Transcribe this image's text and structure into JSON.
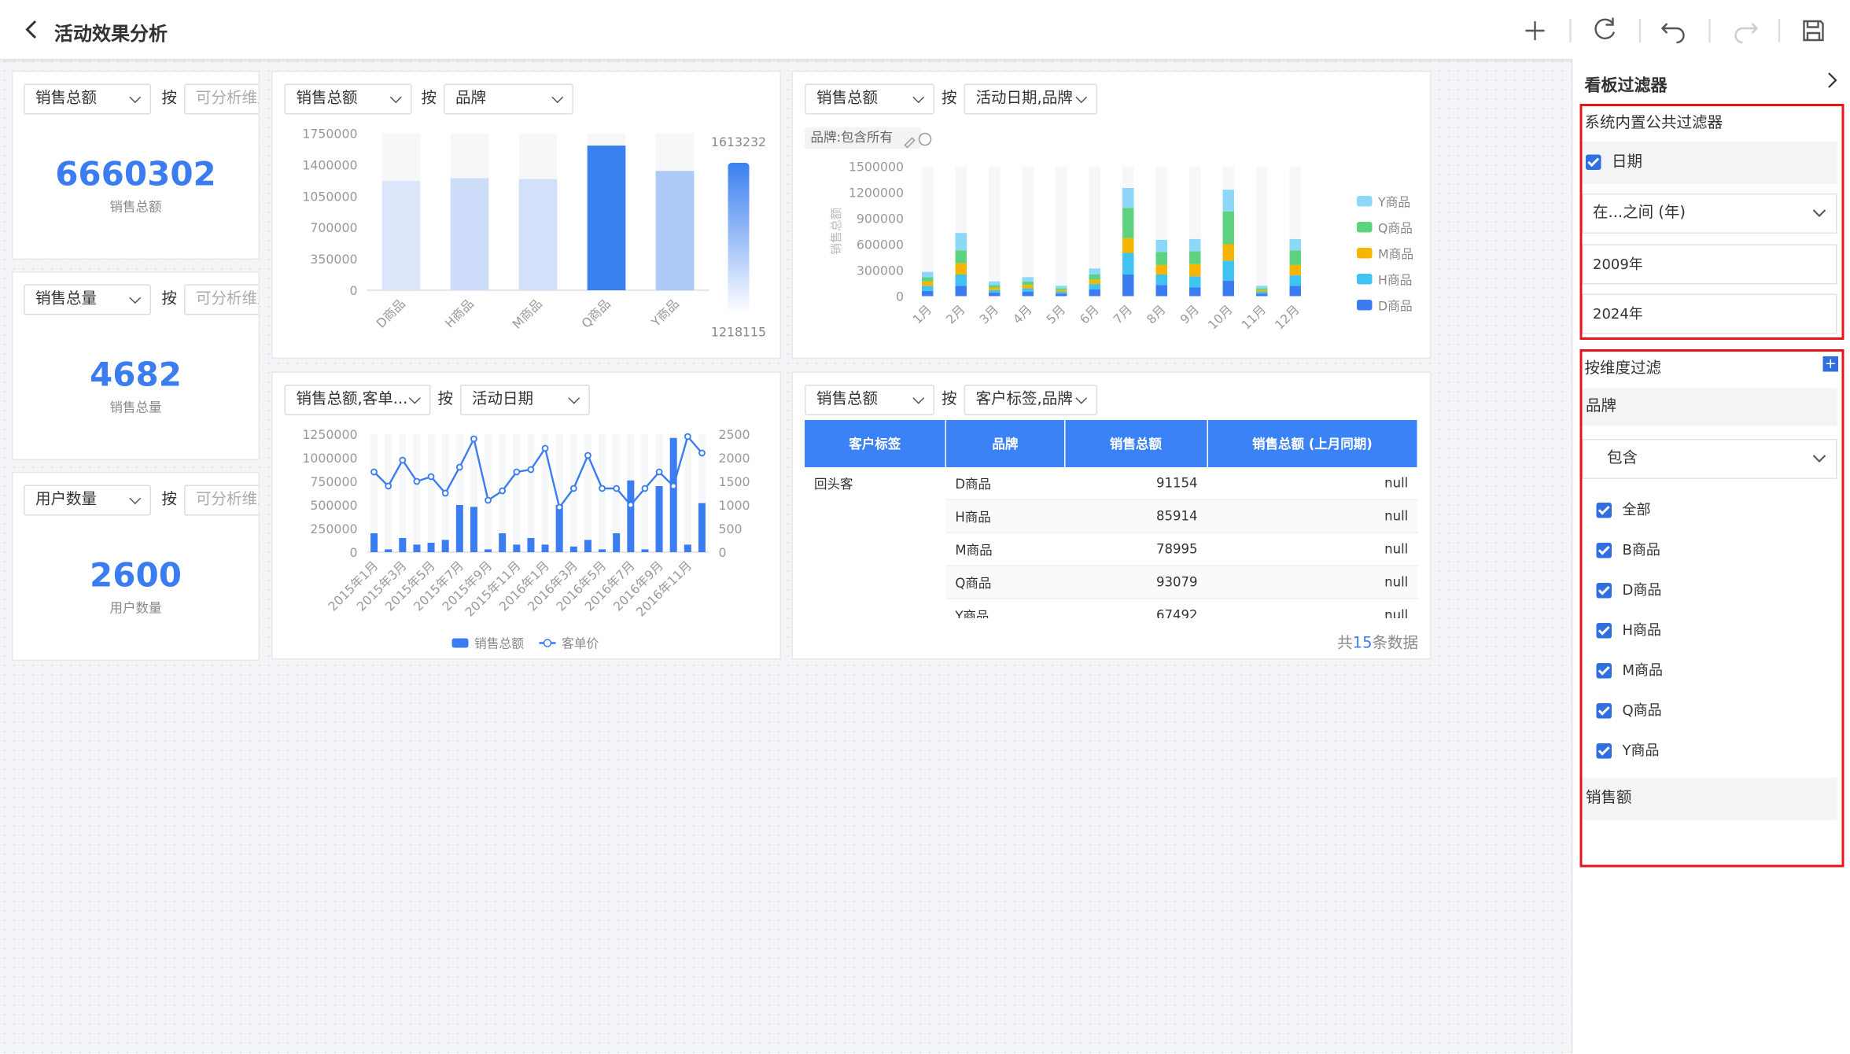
{
  "header": {
    "title": "活动效果分析"
  },
  "kpis": [
    {
      "measure": "销售总额",
      "by": "按",
      "dim": "可分析维度",
      "value": 6660302,
      "label": "销售总额"
    },
    {
      "measure": "销售总量",
      "by": "按",
      "dim": "可分析维度",
      "value": 4682,
      "label": "销售总量"
    },
    {
      "measure": "用户数量",
      "by": "按",
      "dim": "可分析维度",
      "value": 2600,
      "label": "用户数量"
    }
  ],
  "charts": [
    {
      "type": "bar",
      "controls": {
        "measure": "销售总额",
        "by": "按",
        "dim": "品牌"
      },
      "categories": [
        "D商品",
        "H商品",
        "M商品",
        "Q商品",
        "Y商品"
      ],
      "values": [
        1218115,
        1250000,
        1240000,
        1613232,
        1330000
      ],
      "ylim": [
        0,
        1750000
      ],
      "yticks": [
        0,
        350000,
        700000,
        1050000,
        1400000,
        1750000
      ],
      "visual_map": {
        "max": 1613232,
        "min": 1218115,
        "colors": [
          "#dbe6fb",
          "#3a7ff0"
        ]
      }
    },
    {
      "type": "stacked_bar",
      "controls": {
        "measure": "销售总额",
        "by": "按",
        "dim": "活动日期,品牌"
      },
      "tag": "品牌:包含所有",
      "ylabel": "销售总额",
      "categories": [
        "1月",
        "2月",
        "3月",
        "4月",
        "5月",
        "6月",
        "7月",
        "8月",
        "9月",
        "10月",
        "11月",
        "12月"
      ],
      "series": [
        {
          "name": "D商品",
          "color": "#3b7cf0",
          "values": [
            60000,
            120000,
            40000,
            50000,
            30000,
            80000,
            250000,
            130000,
            100000,
            180000,
            30000,
            120000
          ]
        },
        {
          "name": "H商品",
          "color": "#3fc3f0",
          "values": [
            60000,
            130000,
            30000,
            40000,
            20000,
            60000,
            250000,
            120000,
            130000,
            230000,
            20000,
            120000
          ]
        },
        {
          "name": "M商品",
          "color": "#f7b500",
          "values": [
            50000,
            130000,
            30000,
            40000,
            20000,
            50000,
            170000,
            110000,
            140000,
            190000,
            20000,
            120000
          ]
        },
        {
          "name": "Q商品",
          "color": "#5ed37f",
          "values": [
            50000,
            150000,
            30000,
            40000,
            20000,
            60000,
            350000,
            150000,
            150000,
            380000,
            20000,
            170000
          ]
        },
        {
          "name": "Y商品",
          "color": "#8dd8f8",
          "values": [
            60000,
            200000,
            40000,
            50000,
            30000,
            70000,
            230000,
            140000,
            140000,
            250000,
            30000,
            130000
          ]
        }
      ],
      "ylim": [
        0,
        1500000
      ],
      "yticks": [
        0,
        300000,
        600000,
        900000,
        1200000,
        1500000
      ]
    },
    {
      "type": "combo",
      "controls": {
        "measure": "销售总额,客单...",
        "by": "按",
        "dim": "活动日期"
      },
      "categories": [
        "2015年1月",
        null,
        "2015年3月",
        null,
        "2015年5月",
        null,
        "2015年7月",
        null,
        "2015年9月",
        null,
        "2015年11月",
        null,
        "2016年1月",
        null,
        "2016年3月",
        null,
        "2016年5月",
        null,
        "2016年7月",
        null,
        "2016年9月",
        null,
        "2016年11月",
        null
      ],
      "series": [
        {
          "name": "销售总额",
          "color": "#3b7cf0",
          "values": [
            200000,
            30000,
            150000,
            80000,
            100000,
            130000,
            500000,
            480000,
            30000,
            200000,
            80000,
            150000,
            80000,
            500000,
            60000,
            130000,
            30000,
            200000,
            760000,
            30000,
            700000,
            1210000,
            80000,
            520000
          ]
        },
        {
          "name": "客单价",
          "color": "#3b7cf0",
          "axis": "y2",
          "values": [
            1700,
            1400,
            1950,
            1500,
            1600,
            1250,
            1800,
            2400,
            1100,
            1300,
            1700,
            1750,
            2200,
            950,
            1350,
            2050,
            1350,
            1350,
            1000,
            1350,
            1700,
            1400,
            2450,
            2100
          ]
        }
      ],
      "ylim": [
        0,
        1250000
      ],
      "yticks": [
        0,
        250000,
        500000,
        750000,
        1000000,
        1250000
      ],
      "y2lim": [
        0,
        2500
      ],
      "y2ticks": [
        0,
        500,
        1000,
        1500,
        2000,
        2500
      ]
    }
  ],
  "table": {
    "controls": {
      "measure": "销售总额",
      "by": "按",
      "dim": "客户标签,品牌"
    },
    "columns": [
      "客户标签",
      "品牌",
      "销售总额",
      "销售总额 (上月同期)"
    ],
    "group": "回头客",
    "rows": [
      [
        "D商品",
        91154,
        "null"
      ],
      [
        "H商品",
        85914,
        "null"
      ],
      [
        "M商品",
        78995,
        "null"
      ],
      [
        "Q商品",
        93079,
        "null"
      ],
      [
        "Y商品",
        67492,
        "null"
      ]
    ],
    "total": {
      "prefix": "共",
      "count": 15,
      "suffix": "条数据"
    }
  },
  "filter": {
    "title": "看板过滤器",
    "system": {
      "title": "系统内置公共过滤器",
      "field": "日期",
      "mode": "在...之间 (年)",
      "from": "2009年",
      "to": "2024年"
    },
    "dimension": {
      "title": "按维度过滤",
      "field": "品牌",
      "mode": "包含",
      "items": [
        "全部",
        "B商品",
        "D商品",
        "H商品",
        "M商品",
        "Q商品",
        "Y商品"
      ],
      "field2": "销售额"
    }
  }
}
